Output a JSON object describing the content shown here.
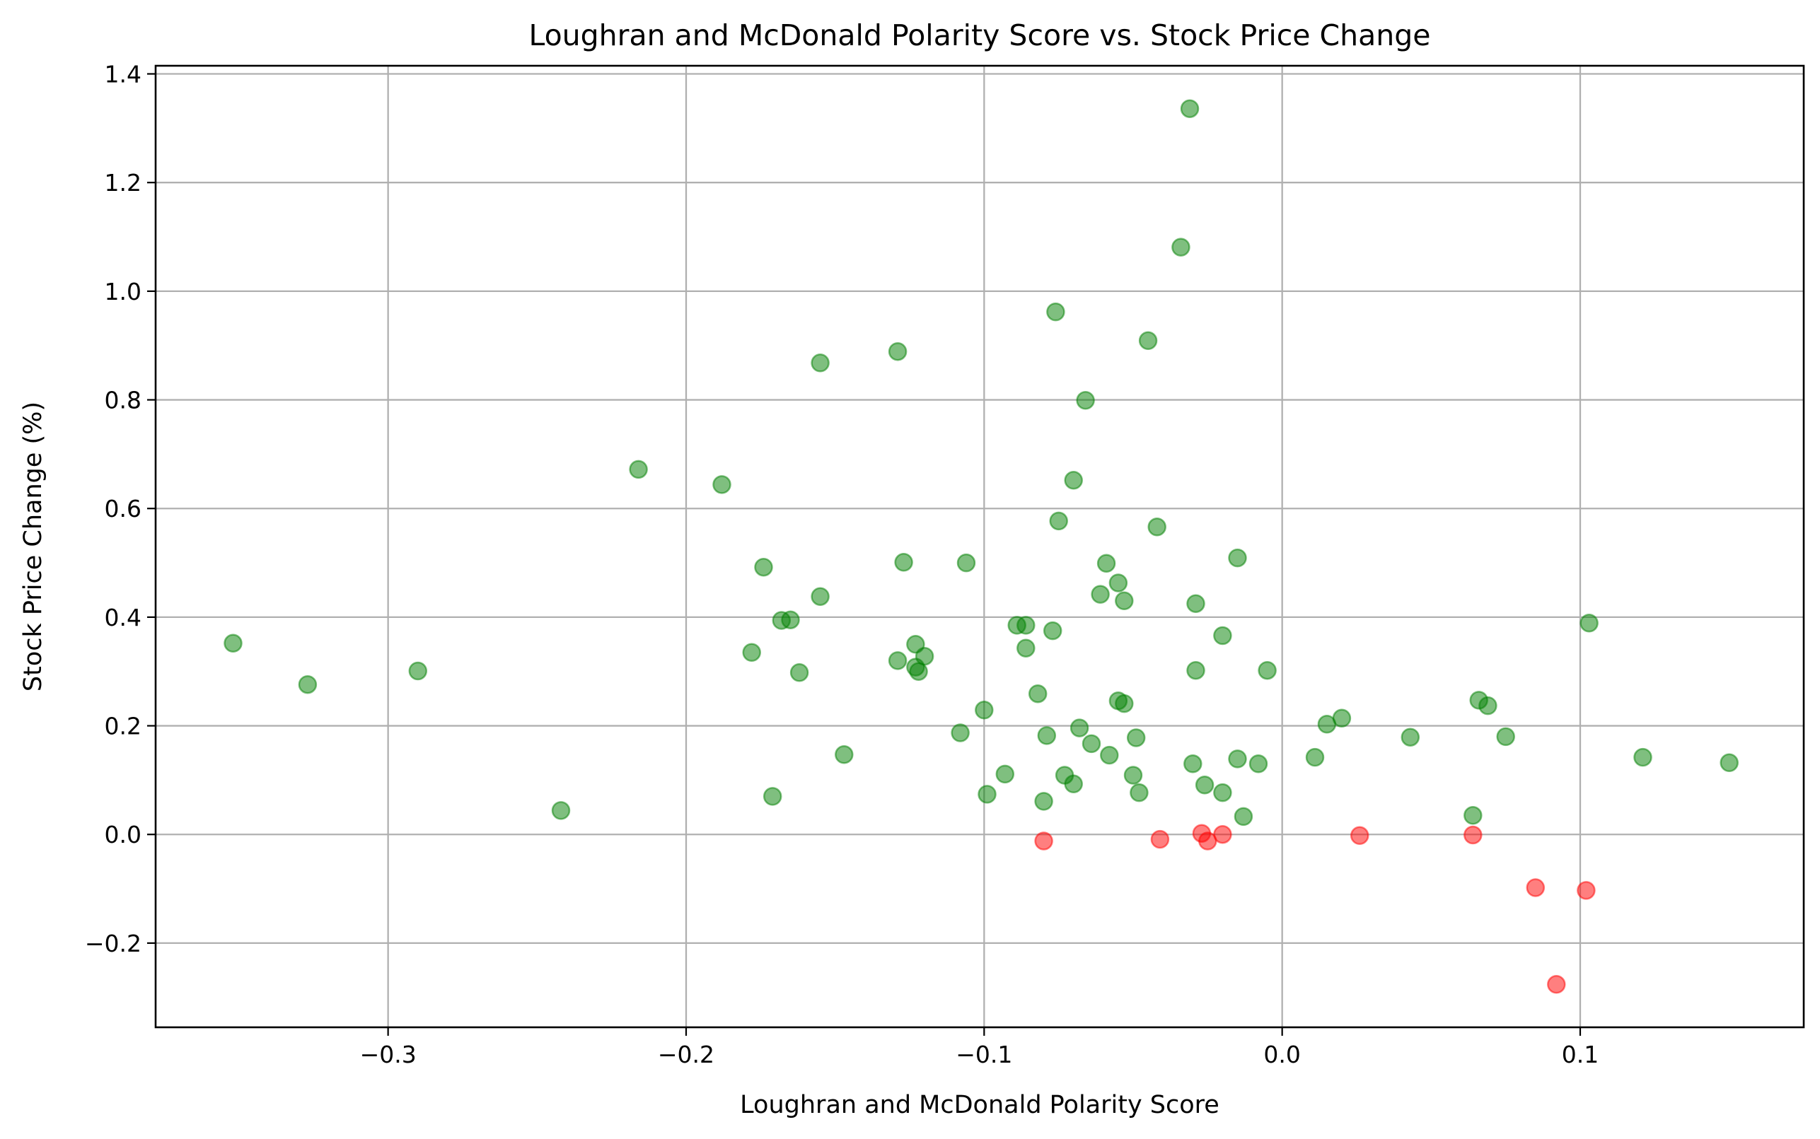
{
  "chart_data": {
    "type": "scatter",
    "title": "Loughran and McDonald Polarity Score vs. Stock Price Change",
    "xlabel": "Loughran and McDonald Polarity Score",
    "ylabel": "Stock Price Change (%)",
    "xlim": [
      -0.378,
      0.175
    ],
    "ylim": [
      -0.355,
      1.415
    ],
    "xticks": [
      -0.3,
      -0.2,
      -0.1,
      0.0,
      0.1
    ],
    "xtick_labels": [
      "−0.3",
      "−0.2",
      "−0.1",
      "0.0",
      "0.1"
    ],
    "yticks": [
      -0.2,
      0.0,
      0.2,
      0.4,
      0.6,
      0.8,
      1.0,
      1.2,
      1.4
    ],
    "ytick_labels": [
      "−0.2",
      "0.0",
      "0.2",
      "0.4",
      "0.6",
      "0.8",
      "1.0",
      "1.2",
      "1.4"
    ],
    "grid": true,
    "marker_alpha": 0.5,
    "colors": {
      "positive": "#008000",
      "negative": "#ff0000"
    },
    "series": [
      {
        "color": "#008000",
        "points": [
          [
            -0.352,
            0.352
          ],
          [
            -0.327,
            0.276
          ],
          [
            -0.29,
            0.301
          ],
          [
            -0.242,
            0.044
          ],
          [
            -0.216,
            0.672
          ],
          [
            -0.188,
            0.644
          ],
          [
            -0.178,
            0.335
          ],
          [
            -0.174,
            0.492
          ],
          [
            -0.171,
            0.07
          ],
          [
            -0.168,
            0.394
          ],
          [
            -0.165,
            0.395
          ],
          [
            -0.162,
            0.298
          ],
          [
            -0.155,
            0.868
          ],
          [
            -0.155,
            0.438
          ],
          [
            -0.147,
            0.147
          ],
          [
            -0.129,
            0.889
          ],
          [
            -0.129,
            0.32
          ],
          [
            -0.127,
            0.501
          ],
          [
            -0.123,
            0.35
          ],
          [
            -0.123,
            0.308
          ],
          [
            -0.122,
            0.3
          ],
          [
            -0.12,
            0.328
          ],
          [
            -0.108,
            0.187
          ],
          [
            -0.106,
            0.5
          ],
          [
            -0.1,
            0.229
          ],
          [
            -0.099,
            0.074
          ],
          [
            -0.093,
            0.111
          ],
          [
            -0.089,
            0.385
          ],
          [
            -0.086,
            0.385
          ],
          [
            -0.086,
            0.343
          ],
          [
            -0.082,
            0.259
          ],
          [
            -0.08,
            0.061
          ],
          [
            -0.079,
            0.182
          ],
          [
            -0.077,
            0.375
          ],
          [
            -0.076,
            0.962
          ],
          [
            -0.075,
            0.577
          ],
          [
            -0.073,
            0.109
          ],
          [
            -0.07,
            0.652
          ],
          [
            -0.07,
            0.093
          ],
          [
            -0.068,
            0.196
          ],
          [
            -0.066,
            0.799
          ],
          [
            -0.064,
            0.167
          ],
          [
            -0.061,
            0.442
          ],
          [
            -0.059,
            0.499
          ],
          [
            -0.058,
            0.146
          ],
          [
            -0.055,
            0.246
          ],
          [
            -0.055,
            0.463
          ],
          [
            -0.053,
            0.43
          ],
          [
            -0.053,
            0.241
          ],
          [
            -0.05,
            0.109
          ],
          [
            -0.049,
            0.178
          ],
          [
            -0.048,
            0.077
          ],
          [
            -0.045,
            0.909
          ],
          [
            -0.042,
            0.566
          ],
          [
            -0.034,
            1.081
          ],
          [
            -0.031,
            1.336
          ],
          [
            -0.03,
            0.13
          ],
          [
            -0.029,
            0.302
          ],
          [
            -0.029,
            0.425
          ],
          [
            -0.026,
            0.091
          ],
          [
            -0.02,
            0.366
          ],
          [
            -0.02,
            0.077
          ],
          [
            -0.015,
            0.509
          ],
          [
            -0.015,
            0.139
          ],
          [
            -0.013,
            0.033
          ],
          [
            -0.008,
            0.13
          ],
          [
            -0.005,
            0.302
          ],
          [
            0.011,
            0.142
          ],
          [
            0.015,
            0.203
          ],
          [
            0.02,
            0.214
          ],
          [
            0.043,
            0.179
          ],
          [
            0.064,
            0.035
          ],
          [
            0.066,
            0.247
          ],
          [
            0.069,
            0.237
          ],
          [
            0.075,
            0.18
          ],
          [
            0.103,
            0.389
          ],
          [
            0.121,
            0.142
          ],
          [
            0.15,
            0.132
          ]
        ]
      },
      {
        "color": "#ff0000",
        "points": [
          [
            -0.08,
            -0.012
          ],
          [
            -0.041,
            -0.009
          ],
          [
            -0.027,
            0.002
          ],
          [
            -0.025,
            -0.012
          ],
          [
            -0.02,
            0.0
          ],
          [
            0.026,
            -0.002
          ],
          [
            0.064,
            -0.001
          ],
          [
            0.085,
            -0.098
          ],
          [
            0.092,
            -0.276
          ],
          [
            0.102,
            -0.103
          ]
        ]
      }
    ]
  }
}
